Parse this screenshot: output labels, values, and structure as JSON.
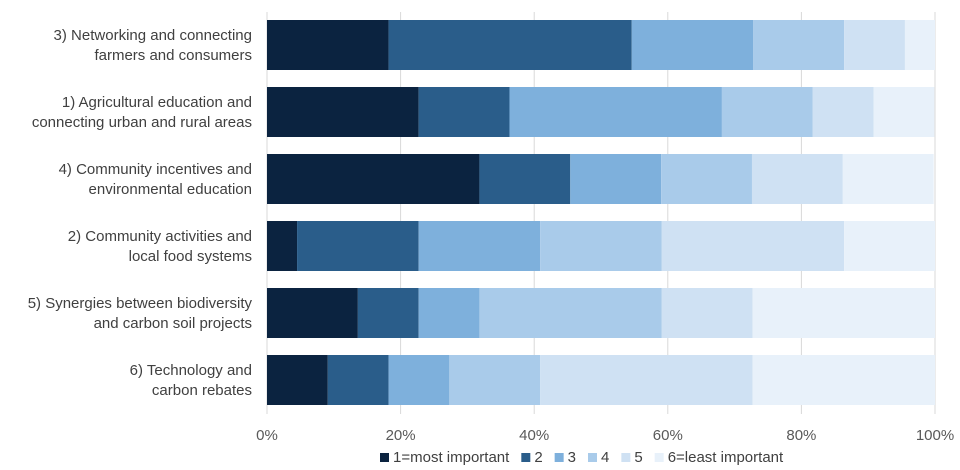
{
  "chart_data": {
    "type": "bar",
    "orientation": "horizontal",
    "stacked": "percent",
    "categories": [
      [
        "3) Networking and connecting",
        "farmers and consumers"
      ],
      [
        "1) Agricultural education and",
        "connecting urban and rural areas"
      ],
      [
        "4) Community incentives and",
        "environmental education"
      ],
      [
        "2) Community activities and",
        "local food systems"
      ],
      [
        "5) Synergies between biodiversity",
        "and carbon soil projects"
      ],
      [
        "6) Technology and",
        "carbon rebates"
      ]
    ],
    "series": [
      {
        "name": "1=most important",
        "color": "#0b2340",
        "values": [
          18.2,
          22.7,
          31.8,
          4.5,
          13.6,
          9.1
        ]
      },
      {
        "name": "2",
        "color": "#2a5d8a",
        "values": [
          36.4,
          13.6,
          13.6,
          18.2,
          9.1,
          9.1
        ]
      },
      {
        "name": "3",
        "color": "#7eb0dc",
        "values": [
          18.2,
          31.8,
          13.6,
          18.2,
          9.1,
          9.1
        ]
      },
      {
        "name": "4",
        "color": "#a9cbea",
        "values": [
          13.6,
          13.6,
          13.6,
          18.2,
          27.3,
          13.6
        ]
      },
      {
        "name": "5",
        "color": "#cfe1f3",
        "values": [
          9.1,
          9.1,
          13.6,
          27.3,
          13.6,
          31.8
        ]
      },
      {
        "name": "6=least important",
        "color": "#e8f1fa",
        "values": [
          4.5,
          9.1,
          13.6,
          13.6,
          27.3,
          27.3
        ]
      }
    ],
    "xticks": [
      "0%",
      "20%",
      "40%",
      "60%",
      "80%",
      "100%"
    ],
    "xlim": [
      0,
      100
    ],
    "grid": "vertical",
    "legend": "bottom"
  }
}
